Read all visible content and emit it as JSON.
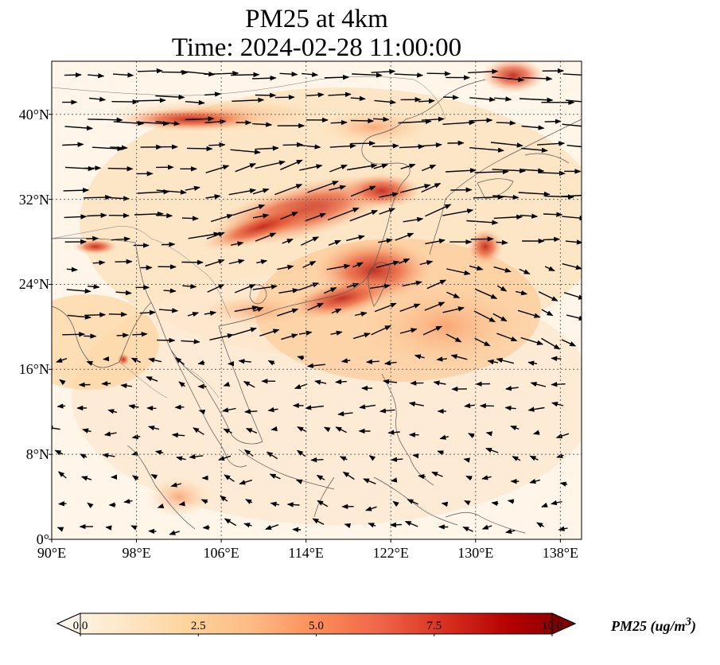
{
  "title": {
    "line1": "PM25 at 4km",
    "line2": "Time: 2024-02-28 11:00:00"
  },
  "map": {
    "lon_range": [
      90,
      140
    ],
    "lat_range": [
      0,
      45
    ],
    "lat_ticks": [
      {
        "value": 0,
        "label": "0°"
      },
      {
        "value": 8,
        "label": "8°N"
      },
      {
        "value": 16,
        "label": "16°N"
      },
      {
        "value": 24,
        "label": "24°N"
      },
      {
        "value": 32,
        "label": "32°N"
      },
      {
        "value": 40,
        "label": "40°N"
      }
    ],
    "lon_ticks": [
      {
        "value": 90,
        "label": "90°E"
      },
      {
        "value": 98,
        "label": "98°E"
      },
      {
        "value": 106,
        "label": "106°E"
      },
      {
        "value": 114,
        "label": "114°E"
      },
      {
        "value": 122,
        "label": "122°E"
      },
      {
        "value": 130,
        "label": "130°E"
      },
      {
        "value": 138,
        "label": "138°E"
      }
    ],
    "gridlines": true
  },
  "colorbar": {
    "min": 0,
    "max": 10,
    "ticks": [
      "0.0",
      "2.5",
      "5.0",
      "7.5",
      "10.0"
    ],
    "label": "PM25 (ug/m",
    "label_sup": "3",
    "label_end": ")",
    "colormap": [
      "#fff7ec",
      "#fee8c8",
      "#fdd49e",
      "#fdbb84",
      "#fc8d59",
      "#ef6548",
      "#d7301f",
      "#b30000",
      "#7f0000"
    ]
  }
}
